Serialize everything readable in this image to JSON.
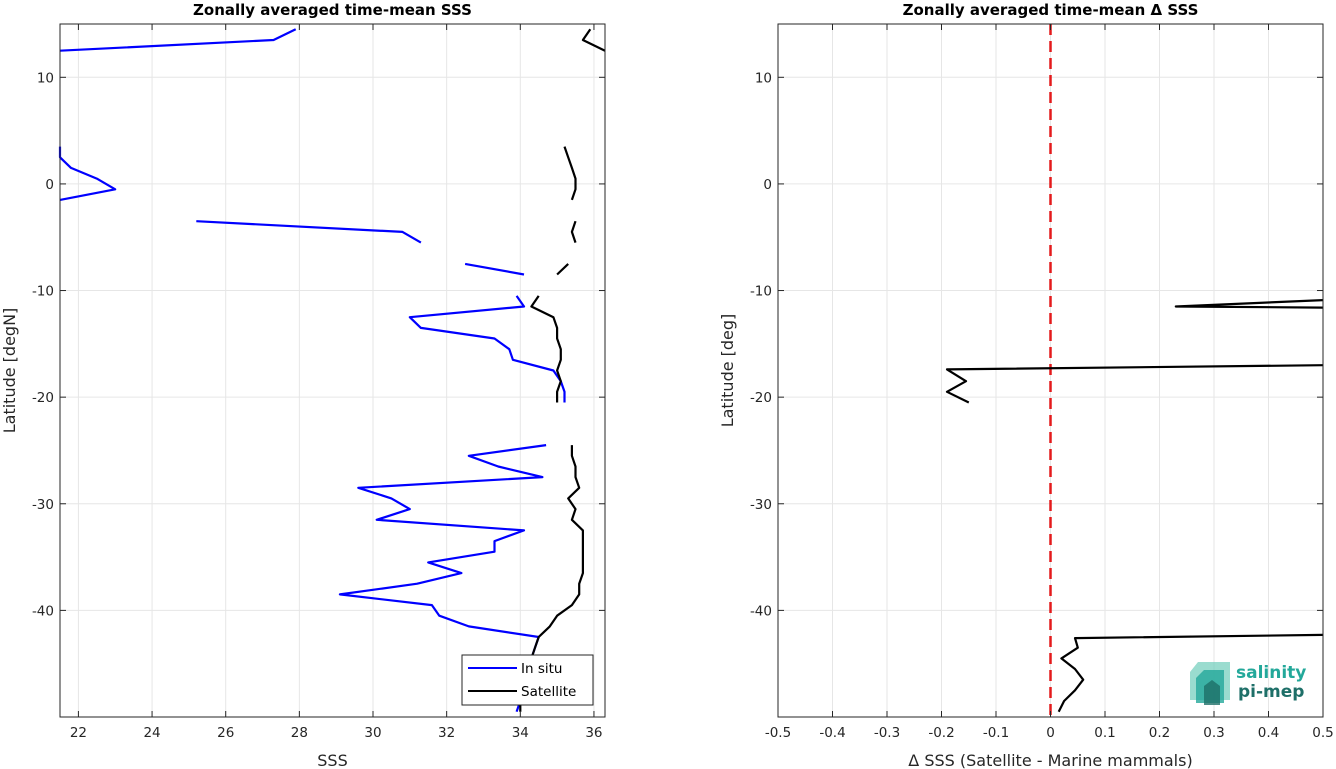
{
  "chart_data": [
    {
      "type": "line",
      "title": "Zonally averaged time-mean SSS",
      "xlabel": "SSS",
      "ylabel": "Latitude [degN]",
      "xlim": [
        21.5,
        36.3
      ],
      "ylim": [
        -50,
        15
      ],
      "xticks": [
        22,
        24,
        26,
        28,
        30,
        32,
        34,
        36
      ],
      "yticks": [
        -40,
        -30,
        -20,
        -10,
        0,
        10
      ],
      "grid": true,
      "legend_position": "bottom-right",
      "series": [
        {
          "name": "In situ",
          "color": "#0000ff",
          "segments": [
            [
              [
                27.9,
                14.5
              ],
              [
                27.3,
                13.5
              ],
              [
                21.5,
                12.5
              ]
            ],
            [
              [
                21.5,
                3.5
              ],
              [
                21.5,
                2.5
              ],
              [
                21.8,
                1.5
              ],
              [
                22.5,
                0.5
              ],
              [
                23.0,
                -0.5
              ],
              [
                21.5,
                -1.5
              ]
            ],
            [
              [
                25.2,
                -3.5
              ],
              [
                30.8,
                -4.5
              ],
              [
                31.3,
                -5.5
              ]
            ],
            [
              [
                32.5,
                -7.5
              ],
              [
                34.1,
                -8.5
              ]
            ],
            [
              [
                33.9,
                -10.5
              ],
              [
                34.1,
                -11.5
              ],
              [
                31.0,
                -12.5
              ],
              [
                31.3,
                -13.5
              ],
              [
                33.3,
                -14.5
              ],
              [
                33.7,
                -15.5
              ],
              [
                33.8,
                -16.5
              ],
              [
                34.9,
                -17.5
              ],
              [
                35.1,
                -18.5
              ],
              [
                35.2,
                -19.5
              ],
              [
                35.2,
                -20.5
              ]
            ],
            [
              [
                34.7,
                -24.5
              ],
              [
                32.6,
                -25.5
              ],
              [
                33.4,
                -26.5
              ],
              [
                34.6,
                -27.5
              ],
              [
                29.6,
                -28.5
              ],
              [
                30.5,
                -29.5
              ],
              [
                31.0,
                -30.5
              ],
              [
                30.1,
                -31.5
              ],
              [
                34.1,
                -32.5
              ],
              [
                33.3,
                -33.5
              ],
              [
                33.3,
                -34.5
              ],
              [
                31.5,
                -35.5
              ],
              [
                32.4,
                -36.5
              ],
              [
                31.2,
                -37.5
              ],
              [
                29.1,
                -38.5
              ],
              [
                31.6,
                -39.5
              ],
              [
                31.8,
                -40.5
              ],
              [
                32.6,
                -41.5
              ],
              [
                34.5,
                -42.5
              ],
              [
                34.4,
                -43.5
              ],
              [
                34.3,
                -44.5
              ],
              [
                34.2,
                -45.5
              ],
              [
                34.1,
                -46.5
              ],
              [
                34.0,
                -47.5
              ],
              [
                34.0,
                -48.5
              ],
              [
                33.9,
                -49.5
              ]
            ]
          ]
        },
        {
          "name": "Satellite",
          "color": "#000000",
          "segments": [
            [
              [
                35.9,
                14.5
              ],
              [
                35.7,
                13.5
              ],
              [
                36.3,
                12.5
              ]
            ],
            [
              [
                35.2,
                3.5
              ],
              [
                35.3,
                2.5
              ],
              [
                35.4,
                1.5
              ],
              [
                35.5,
                0.5
              ],
              [
                35.5,
                -0.5
              ],
              [
                35.4,
                -1.5
              ]
            ],
            [
              [
                35.5,
                -3.5
              ],
              [
                35.4,
                -4.5
              ],
              [
                35.5,
                -5.5
              ]
            ],
            [
              [
                35.3,
                -7.5
              ],
              [
                35.0,
                -8.5
              ]
            ],
            [
              [
                34.5,
                -10.5
              ],
              [
                34.3,
                -11.5
              ],
              [
                34.9,
                -12.5
              ],
              [
                35.0,
                -13.5
              ],
              [
                35.0,
                -14.5
              ],
              [
                35.1,
                -15.5
              ],
              [
                35.1,
                -16.5
              ],
              [
                35.0,
                -17.5
              ],
              [
                35.1,
                -18.5
              ],
              [
                35.0,
                -19.5
              ],
              [
                35.0,
                -20.5
              ]
            ],
            [
              [
                35.4,
                -24.5
              ],
              [
                35.4,
                -25.5
              ],
              [
                35.5,
                -26.5
              ],
              [
                35.5,
                -27.5
              ],
              [
                35.6,
                -28.5
              ],
              [
                35.3,
                -29.5
              ],
              [
                35.5,
                -30.5
              ],
              [
                35.4,
                -31.5
              ],
              [
                35.7,
                -32.5
              ],
              [
                35.7,
                -33.5
              ],
              [
                35.7,
                -34.5
              ],
              [
                35.7,
                -35.5
              ],
              [
                35.7,
                -36.5
              ],
              [
                35.6,
                -37.5
              ],
              [
                35.6,
                -38.5
              ],
              [
                35.4,
                -39.5
              ],
              [
                35.0,
                -40.5
              ],
              [
                34.8,
                -41.5
              ],
              [
                34.5,
                -42.5
              ],
              [
                34.4,
                -43.5
              ],
              [
                34.3,
                -44.5
              ],
              [
                34.2,
                -45.5
              ],
              [
                34.1,
                -46.5
              ],
              [
                34.1,
                -47.5
              ],
              [
                34.0,
                -48.5
              ],
              [
                34.0,
                -49.5
              ]
            ]
          ]
        }
      ]
    },
    {
      "type": "line",
      "title": "Zonally averaged time-mean Δ SSS",
      "xlabel": "Δ SSS (Satellite - Marine mammals)",
      "ylabel": "Latitude [deg]",
      "xlim": [
        -0.5,
        0.5
      ],
      "ylim": [
        -50,
        15
      ],
      "xticks": [
        -0.5,
        -0.4,
        -0.3,
        -0.2,
        -0.1,
        0,
        0.1,
        0.2,
        0.3,
        0.4,
        0.5
      ],
      "yticks": [
        -40,
        -30,
        -20,
        -10,
        0,
        10
      ],
      "grid": true,
      "zero_line": {
        "x": 0,
        "color": "#e41a1c",
        "style": "dashed"
      },
      "series": [
        {
          "color": "#000000",
          "segments": [
            [
              [
                0.5,
                -10.9
              ],
              [
                0.23,
                -11.5
              ],
              [
                0.5,
                -11.6
              ]
            ],
            [
              [
                0.5,
                -17.0
              ],
              [
                -0.19,
                -17.4
              ],
              [
                -0.155,
                -18.5
              ],
              [
                -0.19,
                -19.5
              ],
              [
                -0.15,
                -20.5
              ]
            ],
            [
              [
                0.5,
                -42.3
              ],
              [
                0.045,
                -42.6
              ],
              [
                0.05,
                -43.5
              ],
              [
                0.02,
                -44.5
              ],
              [
                0.045,
                -45.5
              ],
              [
                0.06,
                -46.5
              ],
              [
                0.045,
                -47.5
              ],
              [
                0.025,
                -48.5
              ],
              [
                0.015,
                -49.5
              ]
            ]
          ]
        }
      ]
    }
  ],
  "legend": {
    "items": [
      "In situ",
      "Satellite"
    ]
  },
  "logo": {
    "line1": "salinity",
    "line2": "pi-mep",
    "colors": [
      "#23a89a",
      "#1e6f68",
      "#6fcdbb"
    ]
  }
}
